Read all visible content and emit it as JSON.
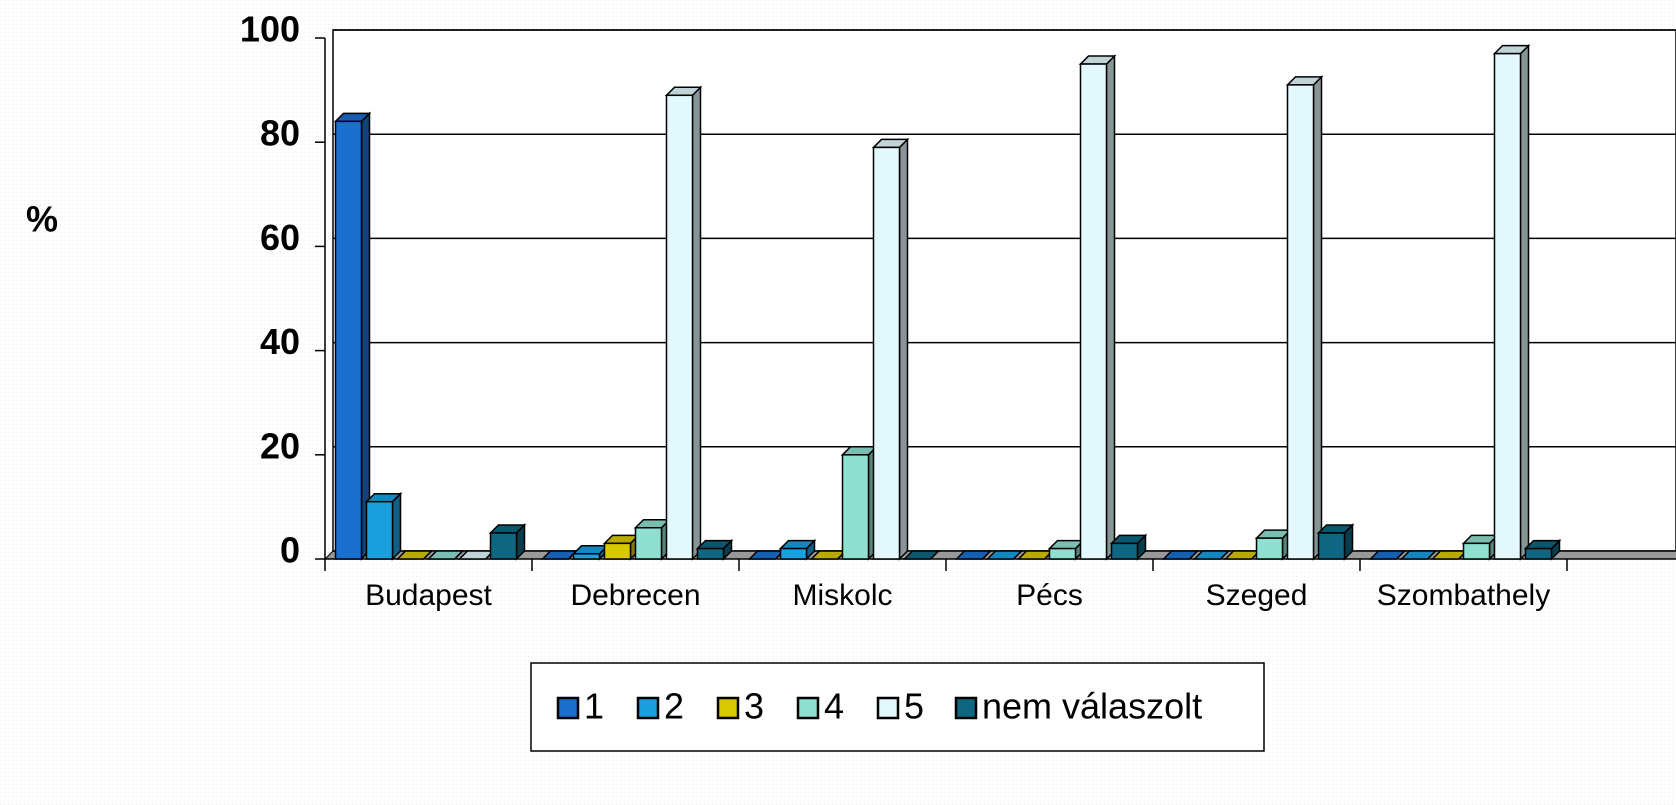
{
  "chart_data": {
    "type": "bar",
    "y_label": "%",
    "categories": [
      "Budapest",
      "Debrecen",
      "Miskolc",
      "Pécs",
      "Szeged",
      "Szombathely"
    ],
    "series": [
      {
        "name": "1",
        "color": "#1a6fcf",
        "values": [
          84,
          0,
          0,
          0,
          0,
          0
        ]
      },
      {
        "name": "2",
        "color": "#1a9fdf",
        "values": [
          11,
          1,
          2,
          0,
          0,
          0
        ]
      },
      {
        "name": "3",
        "color": "#d8c800",
        "values": [
          0,
          3,
          0,
          0,
          0,
          0
        ]
      },
      {
        "name": "4",
        "color": "#8fe0d0",
        "values": [
          0,
          6,
          20,
          2,
          4,
          3
        ]
      },
      {
        "name": "5",
        "color": "#e2f8fc",
        "values": [
          0,
          89,
          79,
          95,
          91,
          97
        ]
      },
      {
        "name": "nem válaszolt",
        "color": "#0e6680",
        "values": [
          5,
          2,
          0,
          3,
          5,
          2
        ]
      }
    ],
    "ylim": [
      0,
      100
    ],
    "yticks": [
      0,
      20,
      40,
      60,
      80,
      100
    ],
    "grid": true
  }
}
